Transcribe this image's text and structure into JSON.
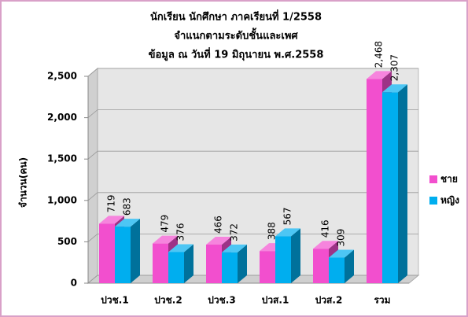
{
  "chart_data": {
    "type": "bar3d",
    "title": [
      "นักเรียน นักศึกษา ภาคเรียนที่ 1/2558",
      "จำแนกตามระดับชั้นและเพศ",
      "ข้อมูล ณ วันที่ 19 มิถุนายน พ.ศ.2558"
    ],
    "y_label": "จำนวน(คน)",
    "categories": [
      "ปวช.1",
      "ปวช.2",
      "ปวช.3",
      "ปวส.1",
      "ปวส.2",
      "รวม"
    ],
    "series": [
      {
        "name": "ชาย",
        "color": "#f24fce",
        "values": [
          719,
          479,
          466,
          388,
          416,
          2468
        ],
        "value_labels": [
          "719",
          "479",
          "466",
          "388",
          "416",
          "2,468"
        ]
      },
      {
        "name": "หญิง",
        "color": "#00aeef",
        "values": [
          683,
          376,
          372,
          567,
          309,
          2307
        ],
        "value_labels": [
          "683",
          "376",
          "372",
          "567",
          "309",
          "2,307"
        ]
      }
    ],
    "ylim": [
      0,
      2500
    ],
    "yticks": [
      0,
      500,
      {
        "value": 1000,
        "label": "1,000"
      },
      {
        "value": 1500,
        "label": "1,500"
      },
      {
        "value": 2000,
        "label": "2,000"
      },
      {
        "value": 2500,
        "label": "2,500"
      }
    ],
    "grid": true,
    "legend": "right"
  }
}
